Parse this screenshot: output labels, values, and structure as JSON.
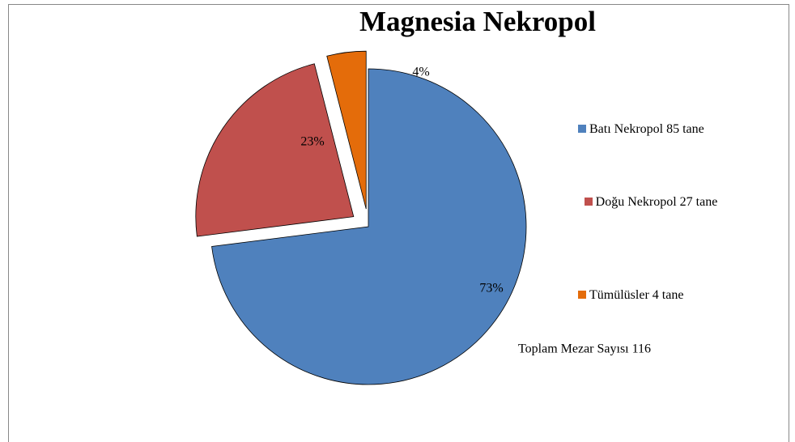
{
  "chart_data": {
    "type": "pie",
    "title": "Magnesia Nekropol",
    "categories": [
      "Batı Nekropol 85 tane",
      "Doğu Nekropol 27 tane",
      "Tümülüsler 4 tane"
    ],
    "values": [
      73,
      23,
      4
    ],
    "value_labels": [
      "73%",
      "23%",
      "4%"
    ],
    "colors": [
      "#4f81bd",
      "#c0504d",
      "#e46c0a"
    ],
    "legend": "right",
    "annotation": "Toplam Mezar Sayısı  116"
  }
}
